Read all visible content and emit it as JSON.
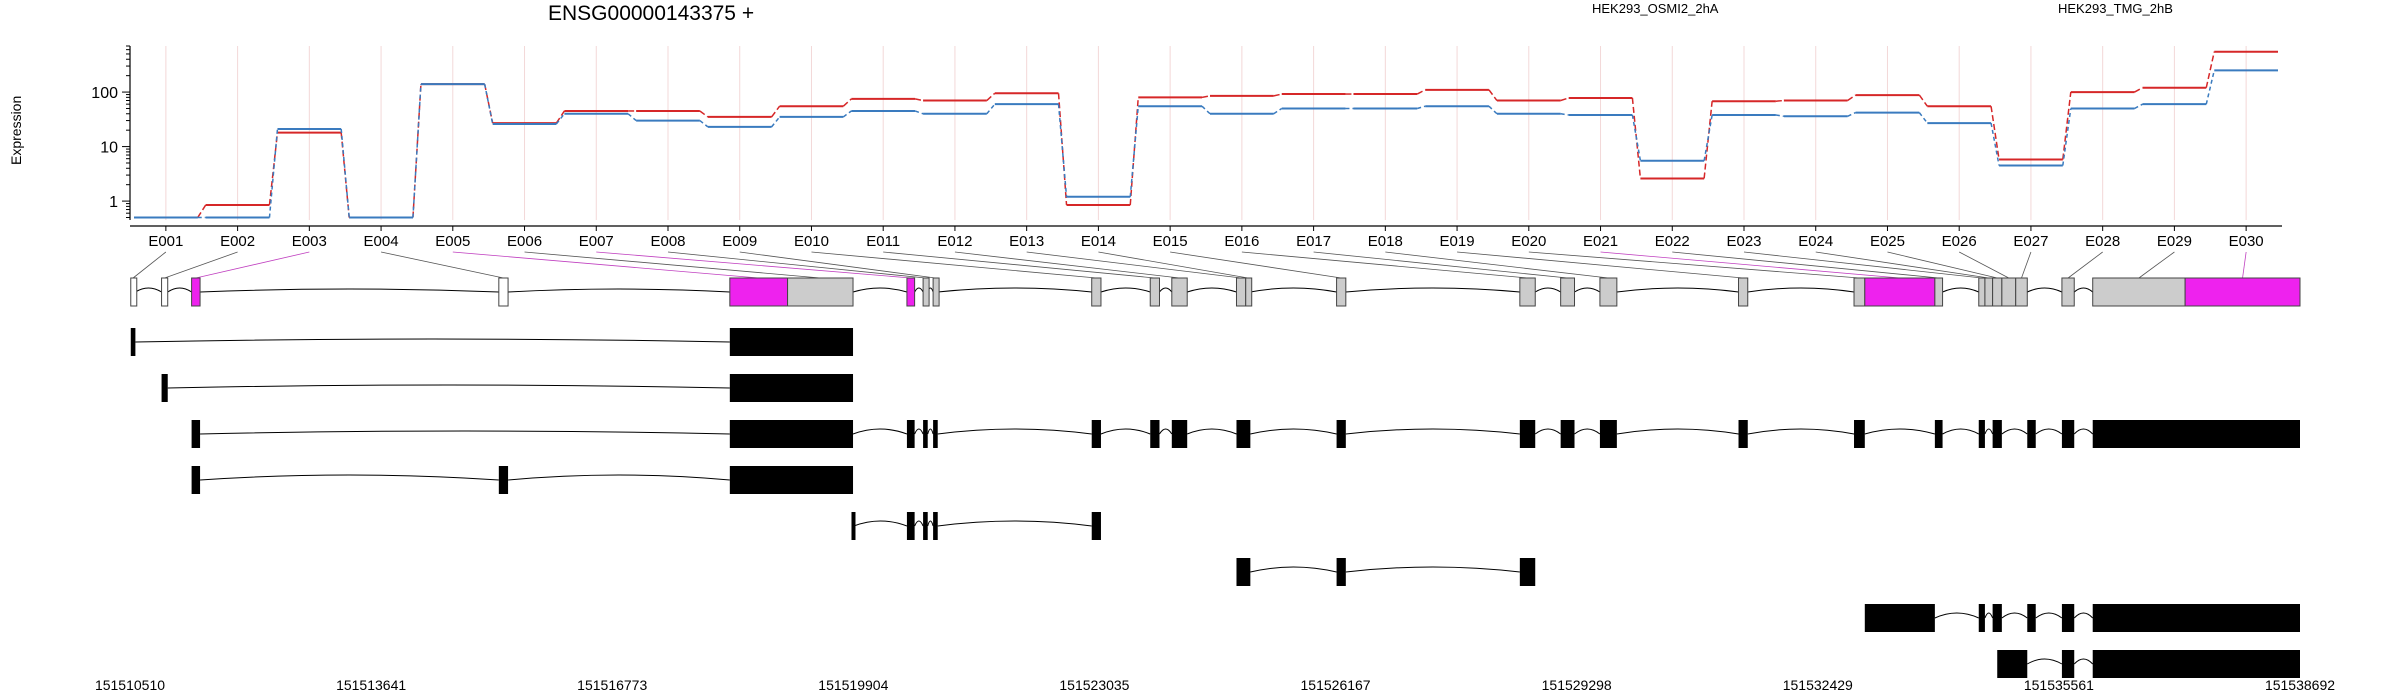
{
  "chart_data": {
    "type": "line",
    "title": "ENSG00000143375 +",
    "ylabel": "Expression",
    "yscale": "log",
    "yticks": [
      1,
      10,
      100
    ],
    "ytick_labels": [
      "1",
      "10",
      "100"
    ],
    "legend_placement": "top",
    "grid": "vertical per exon",
    "categories": [
      "E001",
      "E002",
      "E003",
      "E004",
      "E005",
      "E006",
      "E007",
      "E008",
      "E009",
      "E010",
      "E011",
      "E012",
      "E013",
      "E014",
      "E015",
      "E016",
      "E017",
      "E018",
      "E019",
      "E020",
      "E021",
      "E022",
      "E023",
      "E024",
      "E025",
      "E026",
      "E027",
      "E028",
      "E029",
      "E030"
    ],
    "series": [
      {
        "name": "HEK293_OSMI2_2hA",
        "color": "#d62728",
        "values": [
          0.5,
          0.85,
          18,
          0.5,
          140,
          27,
          45,
          45,
          35,
          55,
          75,
          70,
          95,
          0.85,
          80,
          85,
          92,
          92,
          110,
          70,
          78,
          2.6,
          68,
          70,
          88,
          55,
          5.8,
          100,
          120,
          550
        ]
      },
      {
        "name": "HEK293_TMG_2hB",
        "color": "#3a7bbf",
        "values": [
          0.5,
          0.5,
          21,
          0.5,
          140,
          26,
          40,
          30,
          23,
          35,
          45,
          40,
          60,
          1.2,
          55,
          40,
          50,
          50,
          55,
          40,
          38,
          5.5,
          38,
          36,
          42,
          27,
          4.5,
          50,
          60,
          250
        ]
      }
    ],
    "genomic_axis": {
      "tick_labels": [
        "151510510",
        "151513641",
        "151516773",
        "151519904",
        "151523035",
        "151526167",
        "151529298",
        "151532429",
        "151535561",
        "151538692"
      ],
      "range": [
        151510510,
        151538692
      ]
    }
  }
}
